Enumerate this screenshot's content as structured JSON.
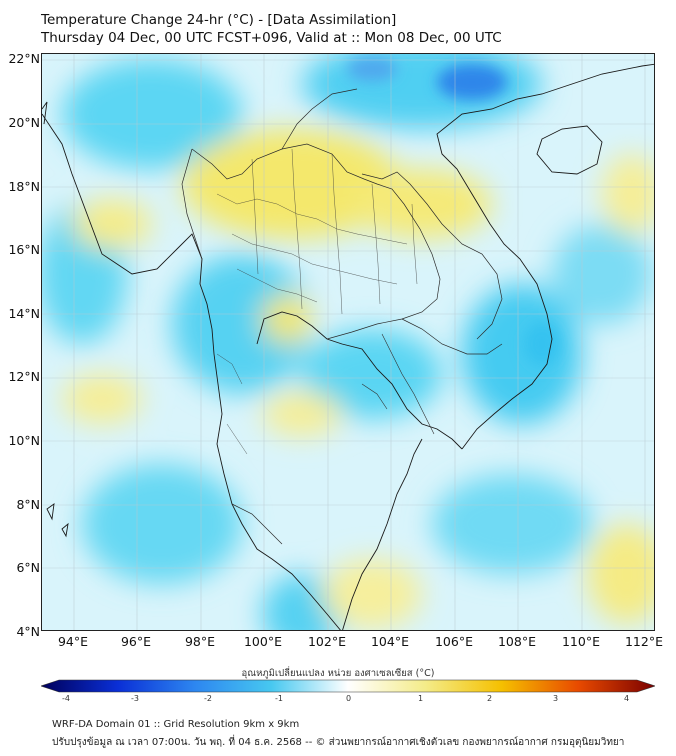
{
  "header": {
    "title": "Temperature Change 24-hr (°C) - [Data Assimilation]",
    "subtitle": "Thursday 04 Dec, 00 UTC FCST+096, Valid at :: Mon 08 Dec, 00 UTC"
  },
  "map": {
    "lat_labels": [
      "22°N",
      "20°N",
      "18°N",
      "16°N",
      "14°N",
      "12°N",
      "10°N",
      "8°N",
      "6°N",
      "4°N"
    ],
    "lon_labels": [
      "94°E",
      "96°E",
      "98°E",
      "100°E",
      "102°E",
      "104°E",
      "106°E",
      "108°E",
      "110°E",
      "112°E"
    ],
    "colors": {
      "land_outline": "#1a1a1a",
      "grid": "#c9d6dd",
      "cyan": "#49d3f2",
      "light_cyan": "#aee9f8",
      "yellow": "#f5ea70",
      "blue": "#3a7fe6"
    }
  },
  "colorbar": {
    "title": "อุณหภูมิเปลี่ยนแปลง หน่วย องศาเซลเซียส (°C)",
    "min": -4,
    "max": 4,
    "ticks": [
      "-4",
      "-3",
      "-2",
      "-1",
      "0",
      "1",
      "2",
      "3",
      "4"
    ],
    "colors": [
      "#00005a",
      "#0a2fd6",
      "#2d86f0",
      "#47c8f0",
      "#ffffff",
      "#f4ec8a",
      "#f5c000",
      "#e84a00",
      "#7a0000"
    ]
  },
  "footer": {
    "line1": "WRF-DA Domain 01 :: Grid Resolution 9km x 9km",
    "line2": "ปรับปรุงข้อมูล ณ เวลา 07:00น. วัน พฤ. ที่ 04 ธ.ค. 2568 -- © ส่วนพยากรณ์อากาศเชิงตัวเลข กองพยากรณ์อากาศ กรมอุตุนิยมวิทยา"
  }
}
